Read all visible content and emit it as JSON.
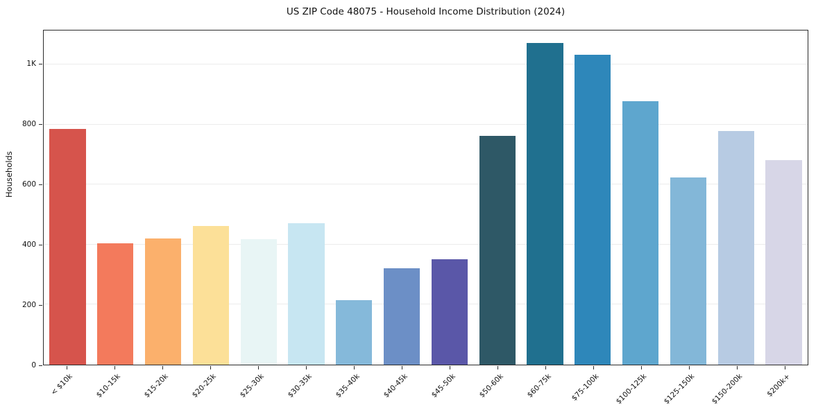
{
  "title": "US ZIP Code 48075 - Household Income Distribution (2024)",
  "chart_data": {
    "type": "bar",
    "title": "US ZIP Code 48075 - Household Income Distribution (2024)",
    "xlabel": "",
    "ylabel": "Households",
    "ylim": [
      0,
      1113
    ],
    "grid": "horizontal",
    "legend": "none",
    "categories": [
      "< $10k",
      "$10-15k",
      "$15-20k",
      "$20-25k",
      "$25-30k",
      "$30-35k",
      "$35-40k",
      "$40-45k",
      "$45-50k",
      "$50-60k",
      "$60-75k",
      "$75-100k",
      "$100-125k",
      "$125-150k",
      "$150-200k",
      "$200k+"
    ],
    "values": [
      785,
      405,
      420,
      462,
      417,
      472,
      215,
      322,
      351,
      762,
      1072,
      1032,
      878,
      623,
      778,
      681
    ],
    "bar_colors": [
      "#d6544c",
      "#f37a5c",
      "#fbb06c",
      "#fce098",
      "#e8f5f5",
      "#c7e6f2",
      "#85b9da",
      "#6c8fc6",
      "#5a57a8",
      "#2e5866",
      "#20708f",
      "#2e87ba",
      "#5ea6ce",
      "#83b7d8",
      "#b7cbe3",
      "#d7d6e7"
    ],
    "yticks": [
      {
        "value": 0,
        "label": "0"
      },
      {
        "value": 200,
        "label": "200"
      },
      {
        "value": 400,
        "label": "400"
      },
      {
        "value": 600,
        "label": "600"
      },
      {
        "value": 800,
        "label": "800"
      },
      {
        "value": 1000,
        "label": "1K"
      }
    ]
  }
}
